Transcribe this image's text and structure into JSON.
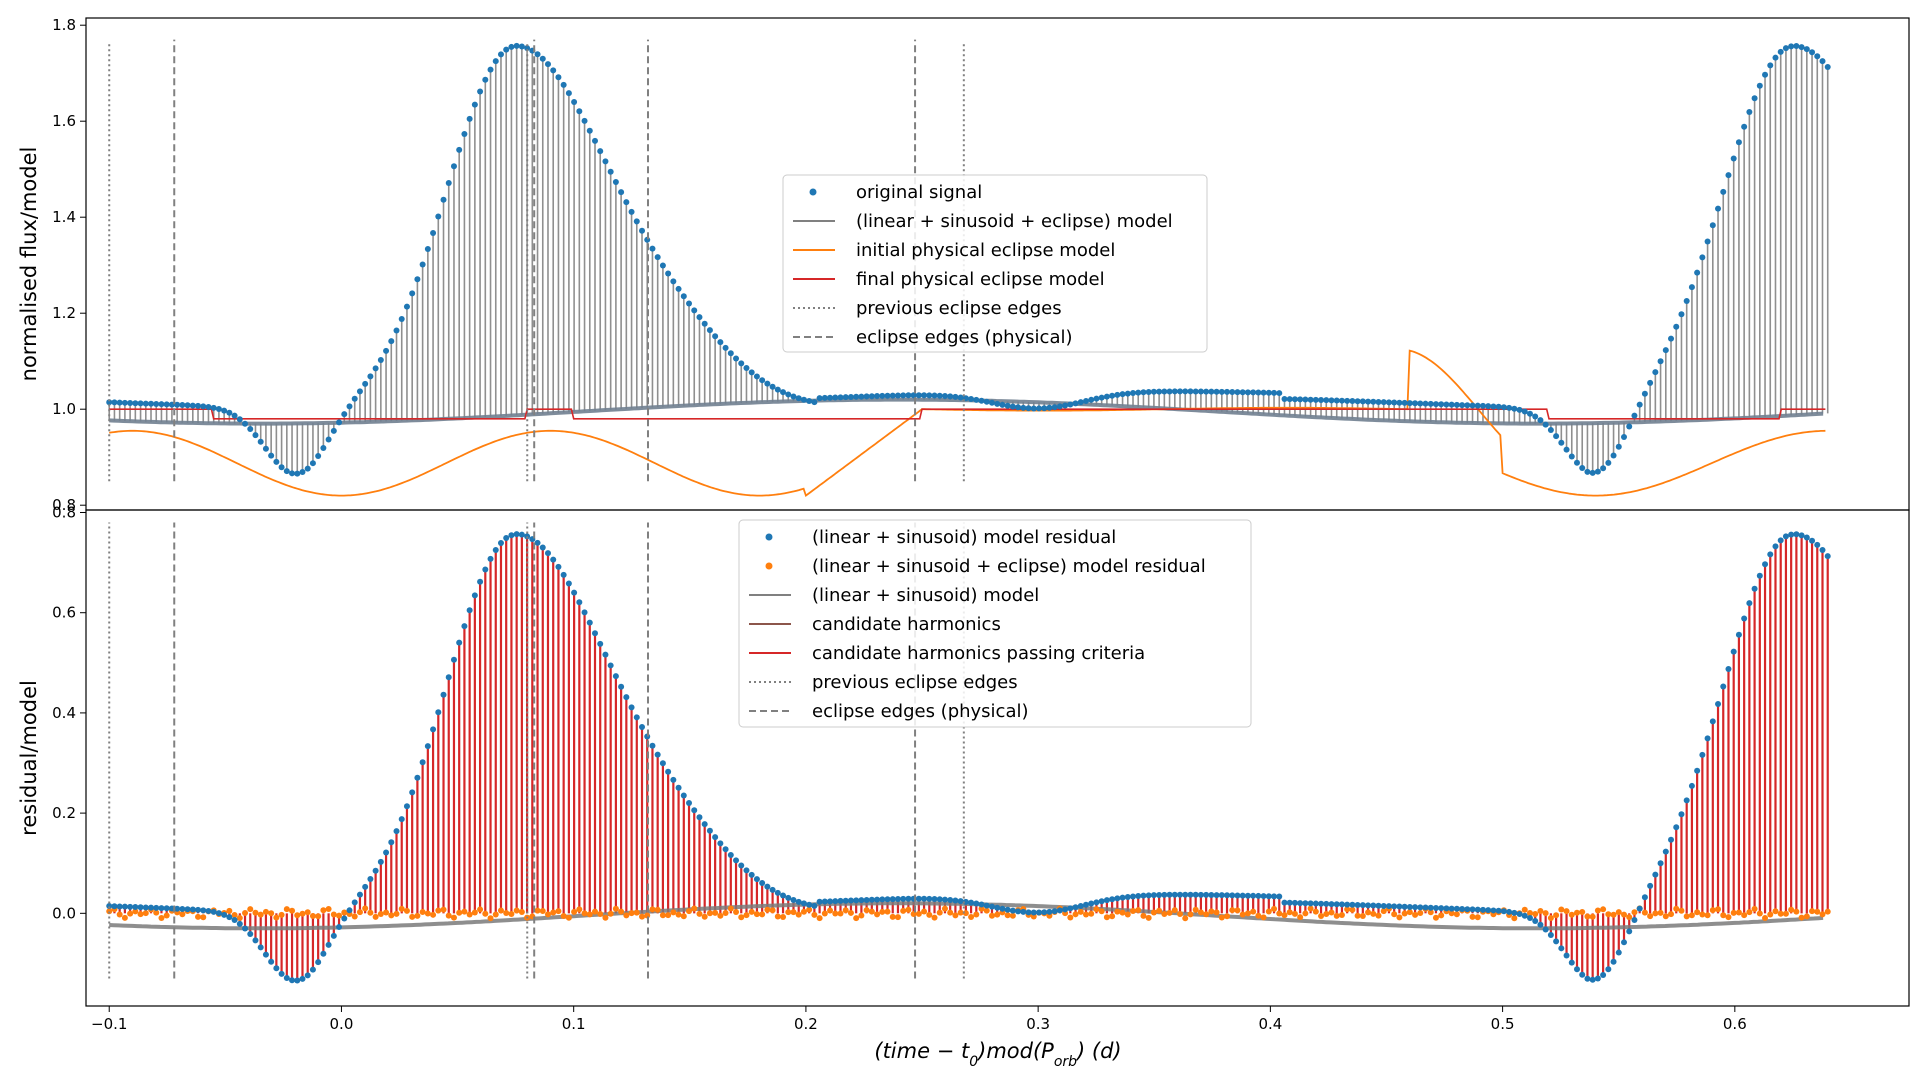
{
  "chart_data": [
    {
      "type": "scatter",
      "panel": "top",
      "ylabel": "normalised flux/model",
      "xlim": [
        -0.11,
        0.675
      ],
      "ylim": [
        0.79,
        1.815
      ],
      "yticks": [
        "0.8",
        "1.0",
        "1.2",
        "1.4",
        "1.6",
        "1.8"
      ],
      "ytick_values": [
        0.8,
        1.0,
        1.2,
        1.4,
        1.6,
        1.8
      ],
      "grid": false,
      "legend": "center",
      "legend_entries": [
        {
          "label": "original signal",
          "color": "#1f77b4",
          "marker": "dot"
        },
        {
          "label": "(linear + sinusoid + eclipse) model",
          "color": "#808080",
          "marker": "solid"
        },
        {
          "label": "initial physical eclipse model",
          "color": "#ff7f0e",
          "marker": "solid"
        },
        {
          "label": "final physical eclipse model",
          "color": "#d62728",
          "marker": "solid"
        },
        {
          "label": "previous eclipse edges",
          "color": "#808080",
          "marker": "dotted"
        },
        {
          "label": "eclipse edges (physical)",
          "color": "#808080",
          "marker": "dashed"
        }
      ],
      "series": {
        "original_signal": {
          "color": "#1f77b4",
          "x_range": [
            -0.1,
            0.64
          ],
          "peak_1": {
            "x": 0.075,
            "y": 1.77
          },
          "peak_2": {
            "x": 0.625,
            "y": 1.77
          },
          "dip_1": {
            "x": -0.02,
            "y": 0.85
          },
          "dip_2": {
            "x": 0.54,
            "y": 0.85
          }
        },
        "initial_physical_eclipse_model": {
          "color": "#ff7f0e",
          "minimum": 0.82,
          "minima_x": [
            -0.015,
            0.18,
            0.54
          ],
          "maxima": [
            {
              "x": 0.09,
              "y": 0.955
            },
            {
              "x": 0.27,
              "y": 1.0
            },
            {
              "x": 0.64,
              "y": 0.955
            }
          ]
        },
        "final_physical_eclipse_model": {
          "color": "#d62728",
          "low": 0.98,
          "high": 1.0
        }
      },
      "vlines_dotted": {
        "x": [
          -0.1,
          0.08,
          0.268
        ],
        "ymin": 0.85,
        "ymax": 1.765,
        "color": "#808080"
      },
      "vlines_dashed": {
        "x": [
          -0.072,
          0.083,
          0.132,
          0.247
        ],
        "ymin": 0.85,
        "ymax": 1.77,
        "color": "#808080"
      }
    },
    {
      "type": "scatter",
      "panel": "bottom",
      "ylabel": "residual/model",
      "xlabel": "(time − t₀)mod(P_orb) (d)",
      "xlim": [
        -0.11,
        0.675
      ],
      "ylim": [
        -0.185,
        0.805
      ],
      "yticks": [
        "0.0",
        "0.2",
        "0.4",
        "0.6",
        "0.8"
      ],
      "ytick_values": [
        0.0,
        0.2,
        0.4,
        0.6,
        0.8
      ],
      "xticks": [
        "−0.1",
        "0.0",
        "0.1",
        "0.2",
        "0.3",
        "0.4",
        "0.5",
        "0.6"
      ],
      "xtick_values": [
        -0.1,
        0.0,
        0.1,
        0.2,
        0.3,
        0.4,
        0.5,
        0.6
      ],
      "grid": false,
      "legend": "upper center",
      "legend_entries": [
        {
          "label": "(linear + sinusoid) model residual",
          "color": "#1f77b4",
          "marker": "dot"
        },
        {
          "label": "(linear + sinusoid + eclipse) model residual",
          "color": "#ff7f0e",
          "marker": "dot"
        },
        {
          "label": "(linear + sinusoid) model",
          "color": "#808080",
          "marker": "solid"
        },
        {
          "label": "candidate harmonics",
          "color": "#8c564b",
          "marker": "solid"
        },
        {
          "label": "candidate harmonics passing criteria",
          "color": "#d62728",
          "marker": "solid"
        },
        {
          "label": "previous eclipse edges",
          "color": "#808080",
          "marker": "dotted"
        },
        {
          "label": "eclipse edges (physical)",
          "color": "#808080",
          "marker": "dashed"
        }
      ],
      "series": {
        "linear_sinusoid_residual": {
          "color": "#1f77b4",
          "peak_1": {
            "x": 0.075,
            "y": 0.775
          },
          "peak_2": {
            "x": 0.625,
            "y": 0.775
          },
          "dip_1": {
            "x": -0.02,
            "y": -0.135
          },
          "dip_2": {
            "x": 0.54,
            "y": -0.135
          }
        },
        "linear_sinusoid_eclipse_residual": {
          "color": "#ff7f0e",
          "level": 0.0
        },
        "candidate_harmonics_passing_criteria": {
          "color": "#d62728"
        }
      },
      "vlines_dotted": {
        "x": [
          -0.1,
          0.08,
          0.268
        ],
        "ymin": -0.13,
        "ymax": 0.78,
        "color": "#808080"
      },
      "vlines_dashed": {
        "x": [
          -0.072,
          0.083,
          0.132,
          0.247
        ],
        "ymin": -0.13,
        "ymax": 0.78,
        "color": "#808080"
      }
    }
  ],
  "text": {
    "top_ylabel": "normalised flux/model",
    "bottom_ylabel": "residual/model",
    "xlabel_main": "(time − t",
    "xlabel_sub0": "0",
    "xlabel_mid": ")mod(P",
    "xlabel_sub1": "orb",
    "xlabel_end": ") (d)"
  }
}
